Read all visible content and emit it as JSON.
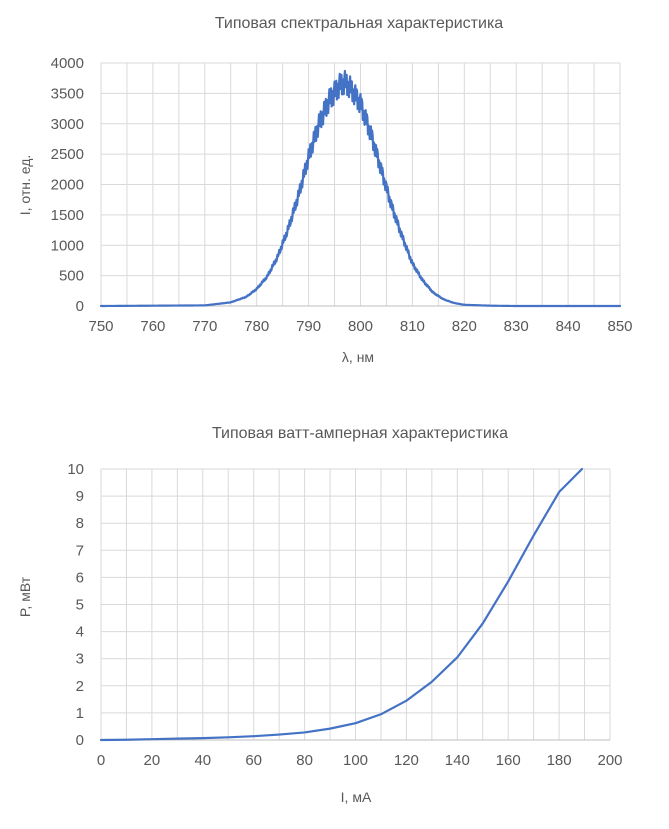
{
  "chart_data": [
    {
      "type": "line",
      "title": "Типовая спектральная характеристика",
      "xlabel": "λ, нм",
      "ylabel": "I, отн. ед.",
      "xlim": [
        750,
        850
      ],
      "ylim": [
        0,
        4000
      ],
      "x_ticks": [
        "750",
        "760",
        "770",
        "780",
        "790",
        "800",
        "810",
        "820",
        "830",
        "840",
        "850"
      ],
      "y_ticks": [
        "0",
        "500",
        "1000",
        "1500",
        "2000",
        "2500",
        "3000",
        "3500",
        "4000"
      ],
      "grid": true,
      "legend": "none",
      "series": [
        {
          "x": [
            750,
            770,
            775,
            778,
            780,
            782,
            784,
            786,
            788,
            790,
            792,
            794,
            796,
            797,
            798,
            800,
            802,
            804,
            806,
            808,
            810,
            812,
            814,
            816,
            818,
            820,
            825,
            830,
            850
          ],
          "y": [
            0,
            10,
            60,
            150,
            280,
            480,
            800,
            1250,
            1800,
            2450,
            3000,
            3400,
            3650,
            3700,
            3620,
            3350,
            2850,
            2250,
            1650,
            1150,
            700,
            420,
            220,
            110,
            50,
            20,
            5,
            0,
            0
          ]
        }
      ],
      "color": "#4472c4"
    },
    {
      "type": "line",
      "title": "Типовая ватт-амперная характеристика",
      "xlabel": "I, мА",
      "ylabel": "P, мВт",
      "xlim": [
        0,
        200
      ],
      "ylim": [
        0,
        10
      ],
      "x_ticks": [
        "0",
        "20",
        "40",
        "60",
        "80",
        "100",
        "120",
        "140",
        "160",
        "180",
        "200"
      ],
      "y_ticks": [
        "0",
        "1",
        "2",
        "3",
        "4",
        "5",
        "6",
        "7",
        "8",
        "9",
        "10"
      ],
      "grid": true,
      "legend": "none",
      "series": [
        {
          "x": [
            0,
            10,
            20,
            30,
            40,
            50,
            60,
            70,
            80,
            90,
            100,
            110,
            120,
            130,
            140,
            150,
            160,
            170,
            180,
            189
          ],
          "y": [
            0,
            0.01,
            0.03,
            0.05,
            0.07,
            0.1,
            0.14,
            0.2,
            0.28,
            0.42,
            0.62,
            0.95,
            1.45,
            2.15,
            3.05,
            4.3,
            5.85,
            7.55,
            9.15,
            10.0
          ]
        }
      ],
      "color": "#4472c4"
    }
  ]
}
